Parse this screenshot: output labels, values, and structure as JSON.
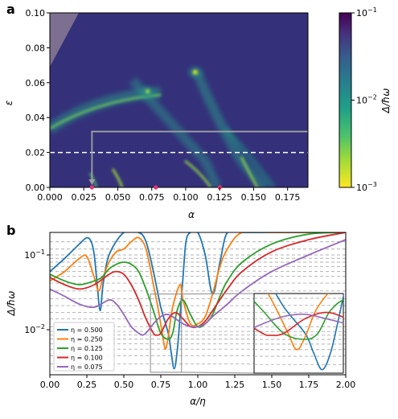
{
  "chart_data": [
    {
      "panel": "a",
      "type": "heatmap",
      "xlabel": "α",
      "ylabel": "ε",
      "xlim": [
        0,
        0.19
      ],
      "ylim": [
        0,
        0.1
      ],
      "xticks": [
        "0.000",
        "0.025",
        "0.050",
        "0.075",
        "0.100",
        "0.125",
        "0.150",
        "0.175"
      ],
      "xtick_values": [
        0,
        0.025,
        0.05,
        0.075,
        0.1,
        0.125,
        0.15,
        0.175
      ],
      "yticks": [
        "0.00",
        "0.02",
        "0.04",
        "0.06",
        "0.08",
        "0.10"
      ],
      "ytick_values": [
        0,
        0.02,
        0.04,
        0.06,
        0.08,
        0.1
      ],
      "colorbar": {
        "label": "Δ/ħω",
        "scale": "log",
        "range": [
          0.001,
          0.1
        ],
        "ticks": [
          {
            "value": 0.1,
            "base": "10",
            "exp": "−1"
          },
          {
            "value": 0.01,
            "base": "10",
            "exp": "−2"
          },
          {
            "value": 0.001,
            "base": "10",
            "exp": "−3"
          }
        ],
        "colormap": "viridis_r"
      },
      "minima_points": [
        {
          "alpha": 0.107,
          "epsilon": 0.066
        },
        {
          "alpha": 0.072,
          "epsilon": 0.055
        }
      ],
      "pink_markers": [
        {
          "alpha": 0.031,
          "epsilon": 0
        },
        {
          "alpha": 0.078,
          "epsilon": 0
        },
        {
          "alpha": 0.125,
          "epsilon": 0
        }
      ],
      "dashed_line_epsilon": 0.02,
      "inset_arrow": {
        "alpha": 0.031,
        "epsilon_top": 0.032
      },
      "grid": false
    },
    {
      "panel": "b",
      "type": "line",
      "xlabel": "α/η",
      "ylabel": "Δ/ħω",
      "xlim": [
        0,
        2.0
      ],
      "ylim": [
        0.0025,
        0.2
      ],
      "yscale": "log",
      "xticks": [
        "0.00",
        "0.25",
        "0.50",
        "0.75",
        "1.00",
        "1.25",
        "1.50",
        "1.75",
        "2.00"
      ],
      "xtick_values": [
        0,
        0.25,
        0.5,
        0.75,
        1,
        1.25,
        1.5,
        1.75,
        2
      ],
      "yticks": [
        {
          "value": 0.1,
          "base": "10",
          "exp": "−1"
        },
        {
          "value": 0.01,
          "base": "10",
          "exp": "−2"
        }
      ],
      "dashed_levels": [
        0.0035,
        0.0045,
        0.0055,
        0.0065,
        0.0075,
        0.0085,
        0.0095,
        0.011,
        0.014,
        0.017,
        0.021,
        0.026,
        0.033,
        0.042,
        0.052,
        0.06,
        0.07,
        0.08,
        0.09,
        0.1,
        0.12,
        0.15
      ],
      "legend_position": "lower-left",
      "series": [
        {
          "name": "η = 0.500",
          "color": "#1f77b4",
          "x": [
            0,
            0.1,
            0.2,
            0.25,
            0.28,
            0.3,
            0.32,
            0.34,
            0.36,
            0.4,
            0.5,
            0.6,
            0.65,
            0.7,
            0.75,
            0.8,
            0.82,
            0.84,
            0.86,
            0.88,
            0.9,
            0.92,
            0.95,
            1.0,
            1.05,
            1.1,
            1.15,
            1.2,
            1.3,
            1.5,
            1.7,
            2.0
          ],
          "y": [
            0.06,
            0.09,
            0.14,
            0.17,
            0.15,
            0.1,
            0.04,
            0.018,
            0.04,
            0.1,
            0.2,
            0.2,
            0.15,
            0.06,
            0.02,
            0.009,
            0.005,
            0.003,
            0.005,
            0.015,
            0.05,
            0.15,
            0.2,
            0.2,
            0.1,
            0.03,
            0.08,
            0.2,
            0.2,
            0.2,
            0.2,
            0.2
          ]
        },
        {
          "name": "η = 0.250",
          "color": "#ff7f0e",
          "x": [
            0,
            0.1,
            0.2,
            0.25,
            0.3,
            0.33,
            0.36,
            0.4,
            0.45,
            0.5,
            0.55,
            0.6,
            0.65,
            0.7,
            0.73,
            0.76,
            0.78,
            0.8,
            0.83,
            0.88,
            0.9,
            0.95,
            1.0,
            1.05,
            1.1,
            1.15,
            1.2,
            1.3,
            1.5,
            1.75,
            2.0
          ],
          "y": [
            0.045,
            0.06,
            0.09,
            0.095,
            0.05,
            0.033,
            0.05,
            0.08,
            0.11,
            0.12,
            0.15,
            0.17,
            0.12,
            0.04,
            0.02,
            0.009,
            0.0055,
            0.008,
            0.02,
            0.04,
            0.025,
            0.012,
            0.012,
            0.015,
            0.03,
            0.07,
            0.12,
            0.2,
            0.2,
            0.2,
            0.2
          ]
        },
        {
          "name": "η = 0.125",
          "color": "#2ca02c",
          "x": [
            0,
            0.1,
            0.2,
            0.3,
            0.35,
            0.4,
            0.45,
            0.5,
            0.55,
            0.6,
            0.65,
            0.7,
            0.75,
            0.8,
            0.83,
            0.86,
            0.9,
            0.95,
            1.0,
            1.05,
            1.1,
            1.15,
            1.2,
            1.3,
            1.5,
            1.75,
            2.0
          ],
          "y": [
            0.055,
            0.045,
            0.04,
            0.045,
            0.05,
            0.065,
            0.075,
            0.08,
            0.075,
            0.06,
            0.035,
            0.018,
            0.009,
            0.0075,
            0.009,
            0.018,
            0.025,
            0.016,
            0.011,
            0.012,
            0.016,
            0.028,
            0.045,
            0.08,
            0.14,
            0.19,
            0.2
          ]
        },
        {
          "name": "η = 0.100",
          "color": "#d62728",
          "x": [
            0,
            0.1,
            0.2,
            0.3,
            0.4,
            0.45,
            0.5,
            0.55,
            0.6,
            0.65,
            0.7,
            0.72,
            0.75,
            0.8,
            0.85,
            0.9,
            0.95,
            1.0,
            1.05,
            1.1,
            1.2,
            1.3,
            1.5,
            1.75,
            2.0
          ],
          "y": [
            0.05,
            0.04,
            0.035,
            0.04,
            0.055,
            0.06,
            0.055,
            0.04,
            0.025,
            0.014,
            0.009,
            0.0085,
            0.009,
            0.014,
            0.017,
            0.014,
            0.011,
            0.011,
            0.013,
            0.018,
            0.035,
            0.06,
            0.11,
            0.16,
            0.2
          ]
        },
        {
          "name": "η = 0.075",
          "color": "#9467bd",
          "x": [
            0,
            0.1,
            0.2,
            0.3,
            0.4,
            0.45,
            0.5,
            0.55,
            0.6,
            0.63,
            0.66,
            0.7,
            0.75,
            0.8,
            0.85,
            0.9,
            0.95,
            1.0,
            1.05,
            1.1,
            1.2,
            1.3,
            1.5,
            1.75,
            2.0
          ],
          "y": [
            0.035,
            0.028,
            0.022,
            0.02,
            0.025,
            0.022,
            0.016,
            0.011,
            0.009,
            0.0085,
            0.0095,
            0.012,
            0.015,
            0.016,
            0.014,
            0.012,
            0.011,
            0.011,
            0.012,
            0.015,
            0.022,
            0.033,
            0.06,
            0.1,
            0.16
          ]
        }
      ],
      "zoom_box": {
        "xlim": [
          0.68,
          0.89
        ],
        "ylim": [
          0.0027,
          0.03
        ]
      },
      "grid": false
    }
  ]
}
